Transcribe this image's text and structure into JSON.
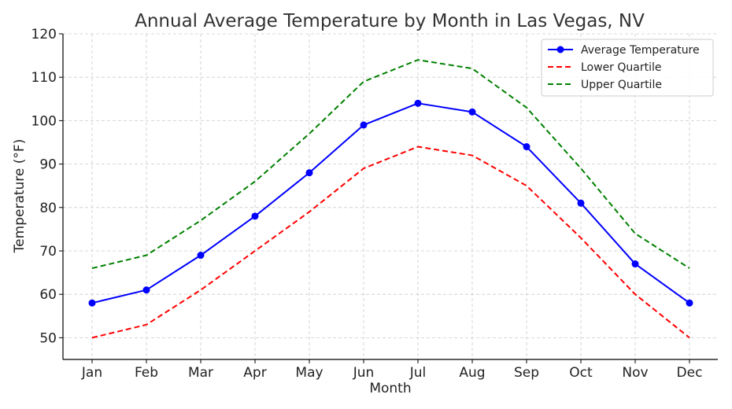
{
  "chart_data": {
    "type": "line",
    "title": "Annual Average Temperature by Month in Las Vegas, NV",
    "xlabel": "Month",
    "ylabel": "Temperature (°F)",
    "categories": [
      "Jan",
      "Feb",
      "Mar",
      "Apr",
      "May",
      "Jun",
      "Jul",
      "Aug",
      "Sep",
      "Oct",
      "Nov",
      "Dec"
    ],
    "ylim": [
      45,
      120
    ],
    "yticks": [
      50,
      60,
      70,
      80,
      90,
      100,
      110,
      120
    ],
    "grid": true,
    "legend_position": "top-right",
    "series": [
      {
        "name": "Average Temperature",
        "values": [
          58,
          61,
          69,
          78,
          88,
          99,
          104,
          102,
          94,
          81,
          67,
          58
        ],
        "color": "#0000ff",
        "style": "solid",
        "marker": "circle"
      },
      {
        "name": "Lower Quartile",
        "values": [
          50,
          53,
          61,
          70,
          79,
          89,
          94,
          92,
          85,
          73,
          60,
          50
        ],
        "color": "#ff0000",
        "style": "dashed",
        "marker": "none"
      },
      {
        "name": "Upper Quartile",
        "values": [
          66,
          69,
          77,
          86,
          97,
          109,
          114,
          112,
          103,
          89,
          74,
          66
        ],
        "color": "#008000",
        "style": "dashed",
        "marker": "none"
      }
    ]
  }
}
